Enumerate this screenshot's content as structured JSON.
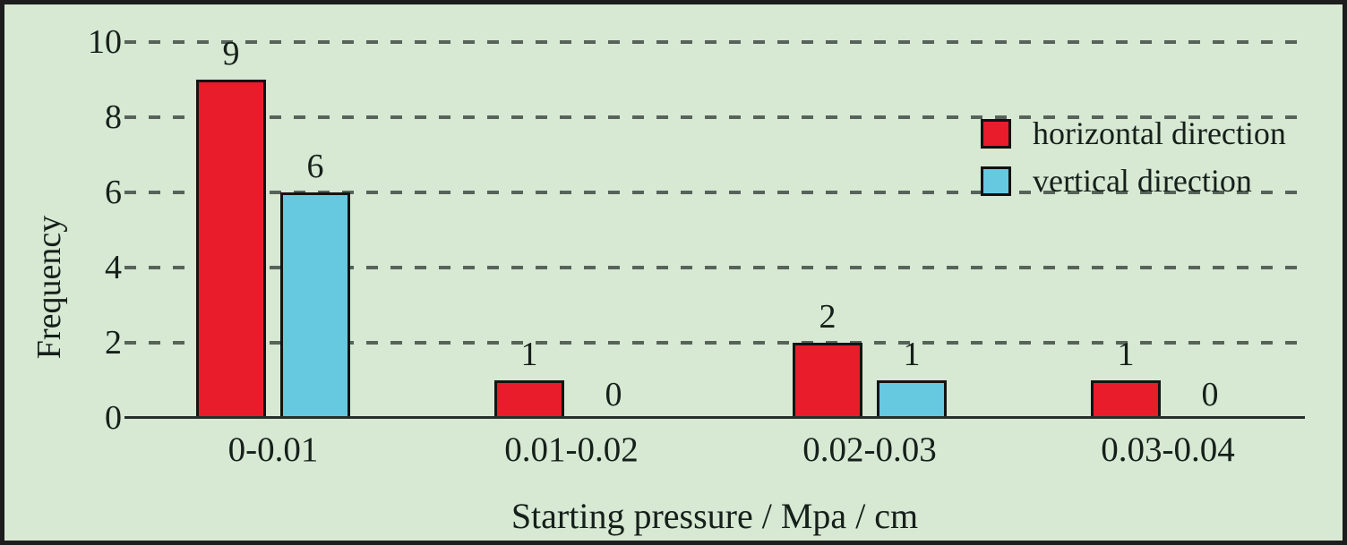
{
  "chart_data": {
    "type": "bar",
    "title": "",
    "xlabel": "Starting pressure / Mpa / cm",
    "ylabel": "Frequency",
    "categories": [
      "0-0.01",
      "0.01-0.02",
      "0.02-0.03",
      "0.03-0.04"
    ],
    "series": [
      {
        "name": "horizontal direction",
        "color": "#e81c2a",
        "values": [
          9,
          1,
          2,
          1
        ]
      },
      {
        "name": "vertical direction",
        "color": "#66c9e0",
        "values": [
          6,
          0,
          1,
          0
        ]
      }
    ],
    "ylim": [
      0,
      10
    ],
    "yticks": [
      0,
      2,
      4,
      6,
      8,
      10
    ],
    "grid": "horizontal-dashed",
    "legend_position": "upper-right",
    "bar_value_labels": [
      [
        "9",
        "1",
        "2",
        "1"
      ],
      [
        "6",
        "0",
        "1",
        "0"
      ]
    ]
  },
  "style": {
    "background": "#d7e8d3",
    "frame_border": "#1d1d1d",
    "grid_color": "#57635a",
    "axis_color": "#26302a",
    "bar_border": "#141414",
    "text_color": "#15201a"
  }
}
